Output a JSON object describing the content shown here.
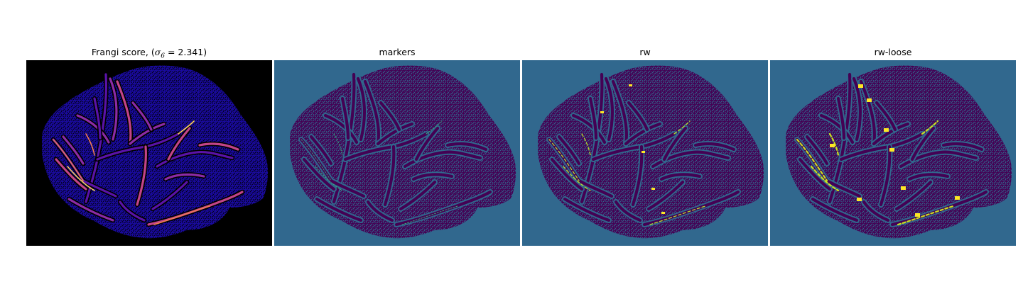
{
  "panels": [
    {
      "id": "frangi",
      "title_prefix": "Frangi score, (",
      "title_sigma": "σ",
      "title_sub": "6",
      "title_suffix": " = 2.341)",
      "colormap": "plasma",
      "background": "#000000",
      "fill": "#1a0aa0",
      "pattern": "#000010",
      "vessel_colors": [
        "#5a12a8",
        "#8c2ba6",
        "#c24489",
        "#f07c52",
        "#fcd05c"
      ]
    },
    {
      "id": "markers",
      "title": "markers",
      "colormap": "viridis",
      "background": "#31688e",
      "fill": "#440154",
      "pattern": "#31688e",
      "trace_color": "#35b779"
    },
    {
      "id": "rw",
      "title": "rw",
      "colormap": "viridis",
      "background": "#31688e",
      "fill": "#440154",
      "pattern": "#31688e",
      "trace_color": "#b5de2b",
      "highlight_color": "#fde725"
    },
    {
      "id": "rw-loose",
      "title": "rw-loose",
      "colormap": "viridis",
      "background": "#31688e",
      "fill": "#440154",
      "pattern": "#31688e",
      "trace_color": "#c8e020",
      "highlight_color": "#fde725"
    }
  ]
}
